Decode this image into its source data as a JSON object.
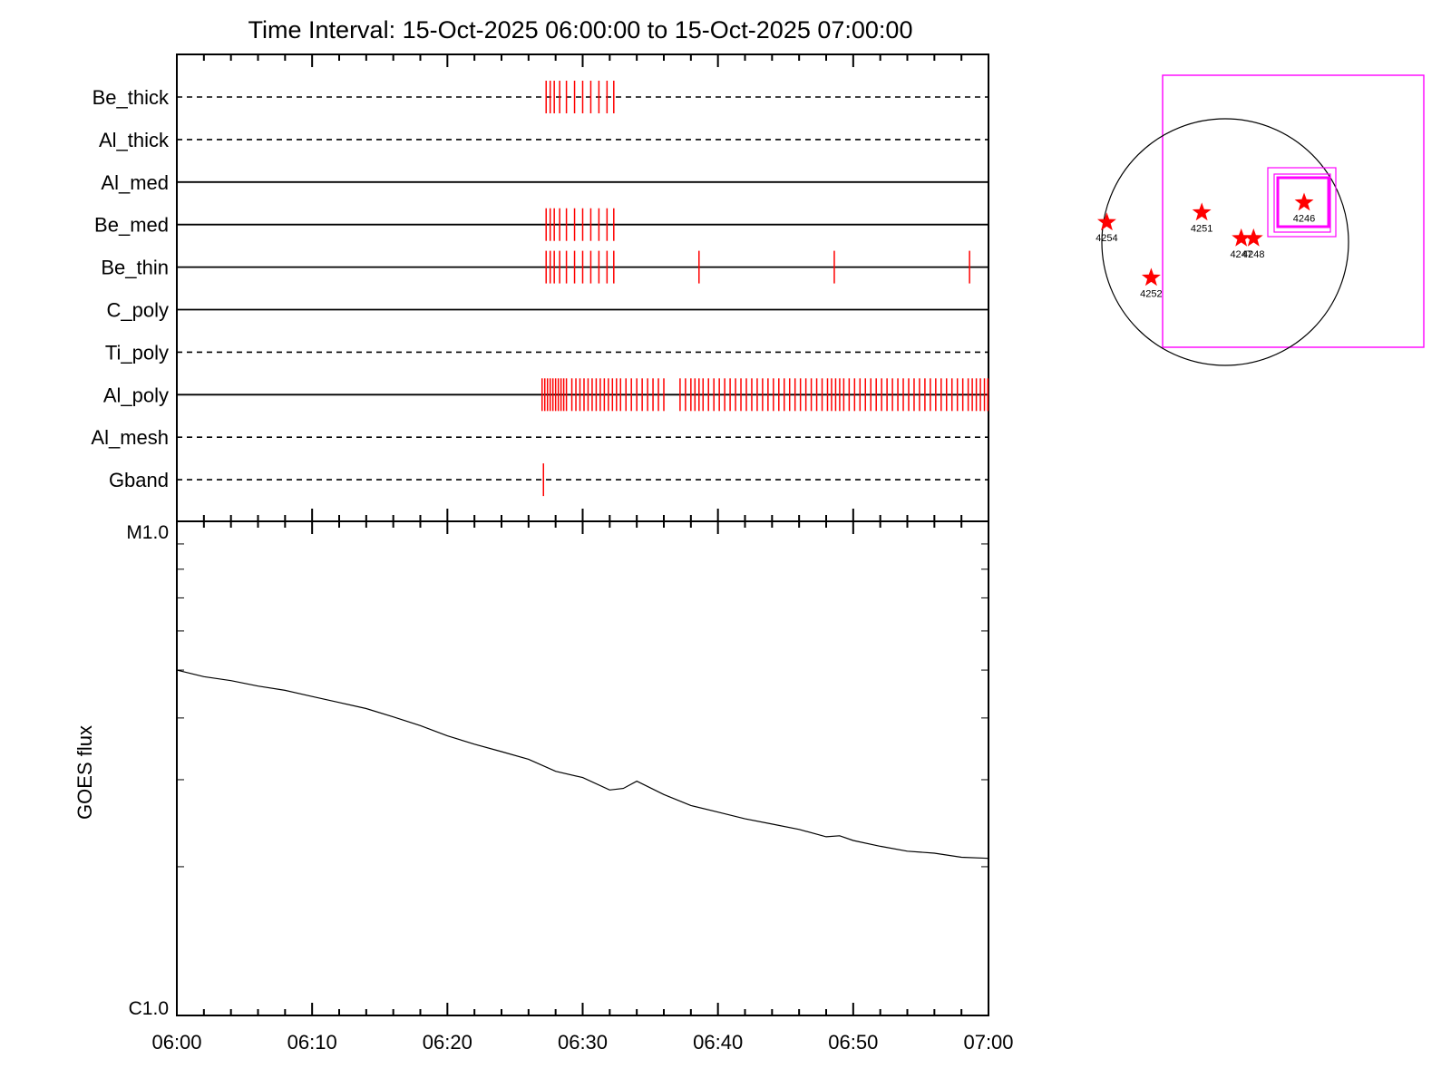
{
  "chart_data": [
    {
      "type": "timeline",
      "title": "Time Interval: 15-Oct-2025 06:00:00 to 15-Oct-2025 07:00:00",
      "xlim": [
        "06:00",
        "07:00"
      ],
      "event_color": "#ff0000",
      "rows": [
        {
          "name": "Be_thick",
          "line": "dashed",
          "events": [
            27.3,
            27.6,
            27.9,
            28.3,
            28.8,
            29.4,
            30.0,
            30.6,
            31.2,
            31.8,
            32.3
          ]
        },
        {
          "name": "Al_thick",
          "line": "dashed",
          "events": []
        },
        {
          "name": "Al_med",
          "line": "solid",
          "events": []
        },
        {
          "name": "Be_med",
          "line": "solid",
          "events": [
            27.3,
            27.6,
            27.9,
            28.3,
            28.8,
            29.4,
            30.0,
            30.6,
            31.2,
            31.8,
            32.3
          ]
        },
        {
          "name": "Be_thin",
          "line": "solid",
          "events": [
            27.3,
            27.6,
            27.9,
            28.3,
            28.8,
            29.4,
            30.0,
            30.6,
            31.2,
            31.8,
            32.3,
            38.6,
            48.6,
            58.6
          ]
        },
        {
          "name": "C_poly",
          "line": "solid",
          "events": []
        },
        {
          "name": "Ti_poly",
          "line": "dashed",
          "events": []
        },
        {
          "name": "Al_poly",
          "line": "solid",
          "events": [
            27.0,
            27.2,
            27.4,
            27.6,
            27.8,
            28.0,
            28.2,
            28.4,
            28.6,
            28.8,
            29.2,
            29.5,
            29.8,
            30.1,
            30.4,
            30.7,
            31.0,
            31.3,
            31.6,
            31.9,
            32.2,
            32.5,
            32.8,
            33.2,
            33.6,
            34.0,
            34.4,
            34.8,
            35.2,
            35.6,
            36.0,
            37.2,
            37.6,
            38.0,
            38.3,
            38.6,
            38.9,
            39.3,
            39.7,
            40.1,
            40.5,
            40.9,
            41.3,
            41.7,
            42.1,
            42.5,
            42.9,
            43.3,
            43.7,
            44.1,
            44.5,
            44.9,
            45.3,
            45.7,
            46.1,
            46.5,
            46.9,
            47.3,
            47.7,
            48.1,
            48.4,
            48.7,
            49.0,
            49.3,
            49.7,
            50.1,
            50.5,
            50.9,
            51.3,
            51.7,
            52.1,
            52.5,
            52.9,
            53.3,
            53.7,
            54.1,
            54.5,
            54.9,
            55.3,
            55.7,
            56.1,
            56.5,
            56.9,
            57.3,
            57.7,
            58.1,
            58.5,
            58.8,
            59.1,
            59.4,
            59.7,
            59.95
          ]
        },
        {
          "name": "Al_mesh",
          "line": "dashed",
          "events": []
        },
        {
          "name": "Gband",
          "line": "dashed",
          "events": [
            27.1
          ]
        }
      ]
    },
    {
      "type": "line",
      "ylabel": "GOES flux",
      "xlabel": "",
      "yscale": "log",
      "ylim": [
        1e-06,
        1e-05
      ],
      "ytick_labels": [
        "C1.0",
        "M1.0"
      ],
      "x_ticks": [
        "06:00",
        "06:10",
        "06:20",
        "06:30",
        "06:40",
        "06:50",
        "07:00"
      ],
      "x_minutes": [
        0,
        2,
        4,
        6,
        8,
        10,
        12,
        14,
        16,
        18,
        20,
        22,
        24,
        26,
        28,
        30,
        32,
        33,
        34,
        36,
        38,
        40,
        42,
        44,
        46,
        48,
        49,
        50,
        52,
        54,
        56,
        58,
        60
      ],
      "flux": [
        5e-06,
        4.85e-06,
        4.76e-06,
        4.64e-06,
        4.55e-06,
        4.42e-06,
        4.3e-06,
        4.18e-06,
        4.02e-06,
        3.86e-06,
        3.68e-06,
        3.54e-06,
        3.42e-06,
        3.3e-06,
        3.12e-06,
        3.03e-06,
        2.86e-06,
        2.88e-06,
        2.98e-06,
        2.8e-06,
        2.66e-06,
        2.58e-06,
        2.5e-06,
        2.44e-06,
        2.38e-06,
        2.3e-06,
        2.31e-06,
        2.26e-06,
        2.2e-06,
        2.15e-06,
        2.13e-06,
        2.09e-06,
        2.08e-06
      ]
    },
    {
      "type": "scatter",
      "map": "solar-disk",
      "disk_color": "#000000",
      "box_color": "#ff00ff",
      "star_color": "#ff0000",
      "xlim": [
        -1,
        1.6
      ],
      "ylim": [
        -1,
        1.6
      ],
      "active_regions": [
        {
          "label": "4254",
          "x": -0.96,
          "y": 0.16
        },
        {
          "label": "4251",
          "x": -0.19,
          "y": 0.24
        },
        {
          "label": "4246",
          "x": 0.64,
          "y": 0.32
        },
        {
          "label": "4247",
          "x": 0.13,
          "y": 0.03
        },
        {
          "label": "4248",
          "x": 0.23,
          "y": 0.03
        },
        {
          "label": "4252",
          "x": -0.6,
          "y": -0.29
        }
      ]
    }
  ]
}
